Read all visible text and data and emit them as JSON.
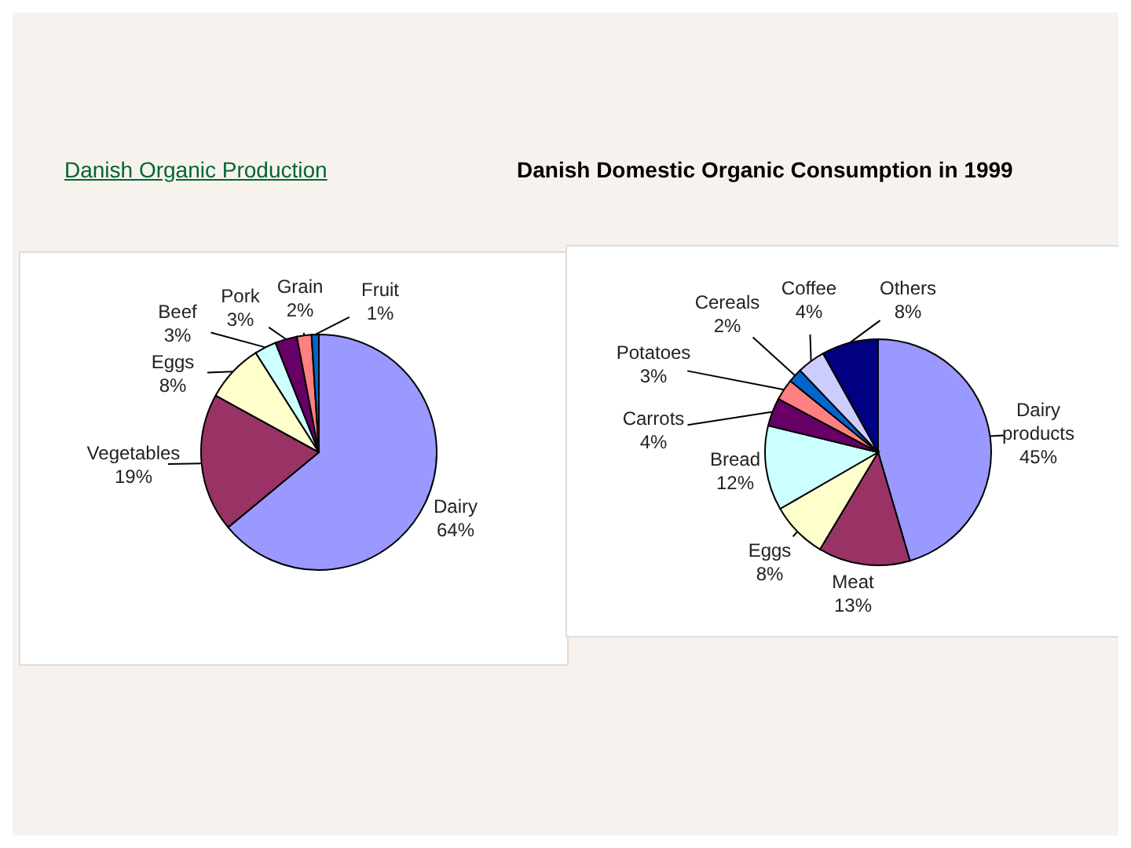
{
  "chart_data": [
    {
      "type": "pie",
      "title": "Danish Organic Production",
      "categories": [
        "Dairy",
        "Vegetables",
        "Eggs",
        "Beef",
        "Pork",
        "Grain",
        "Fruit"
      ],
      "values": [
        64,
        19,
        8,
        3,
        3,
        2,
        1
      ],
      "value_labels": [
        "64%",
        "19%",
        "8%",
        "3%",
        "3%",
        "2%",
        "1%"
      ],
      "colors": [
        "#9999ff",
        "#993366",
        "#ffffcc",
        "#ccffff",
        "#660066",
        "#ff8080",
        "#0066cc"
      ]
    },
    {
      "type": "pie",
      "title": "Danish Domestic Organic Consumption in 1999",
      "categories": [
        "Dairy products",
        "Meat",
        "Eggs",
        "Bread",
        "Carrots",
        "Potatoes",
        "Cereals",
        "Coffee",
        "Others"
      ],
      "values": [
        45,
        13,
        8,
        12,
        4,
        3,
        2,
        4,
        8
      ],
      "value_labels": [
        "45%",
        "13%",
        "8%",
        "12%",
        "4%",
        "3%",
        "2%",
        "4%",
        "8%"
      ],
      "colors": [
        "#9999ff",
        "#993366",
        "#ffffcc",
        "#ccffff",
        "#660066",
        "#ff8080",
        "#0066cc",
        "#ccccff",
        "#000080"
      ]
    }
  ]
}
